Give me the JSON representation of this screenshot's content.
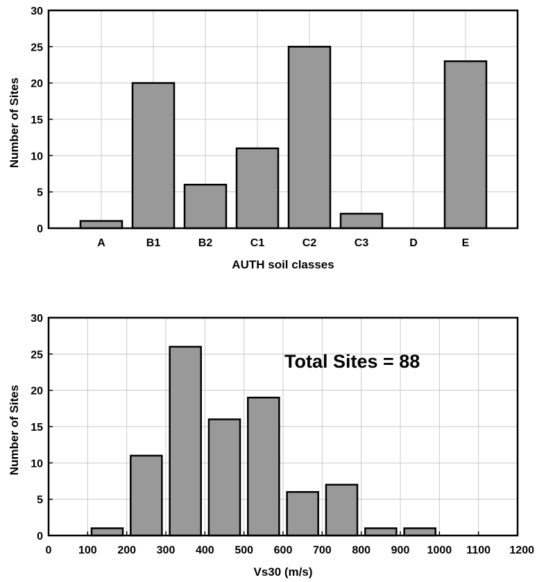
{
  "chart_data": [
    {
      "type": "bar",
      "categories": [
        "A",
        "B1",
        "B2",
        "C1",
        "C2",
        "C3",
        "D",
        "E"
      ],
      "values": [
        1,
        20,
        6,
        11,
        25,
        2,
        0,
        23
      ],
      "xlabel": "AUTH soil classes",
      "ylabel": "Number of Sites",
      "ylim": [
        0,
        30
      ],
      "yticks": [
        "0",
        "5",
        "10",
        "15",
        "20",
        "25",
        "30"
      ],
      "grid": true,
      "bar_color": "#999999"
    },
    {
      "type": "bar",
      "x": [
        150,
        250,
        350,
        450,
        550,
        650,
        750,
        850,
        950
      ],
      "values": [
        1,
        11,
        26,
        16,
        19,
        6,
        7,
        1,
        1
      ],
      "bin_width": 100,
      "xlabel": "Vs30 (m/s)",
      "ylabel": "Number of Sites",
      "xlim": [
        0,
        1200
      ],
      "ylim": [
        0,
        30
      ],
      "xticks": [
        "0",
        "100",
        "200",
        "300",
        "400",
        "500",
        "600",
        "700",
        "800",
        "900",
        "1000",
        "1100",
        "1200"
      ],
      "yticks": [
        "0",
        "5",
        "10",
        "15",
        "20",
        "25",
        "30"
      ],
      "annotation": "Total Sites = 88",
      "grid": true,
      "bar_color": "#999999"
    }
  ]
}
